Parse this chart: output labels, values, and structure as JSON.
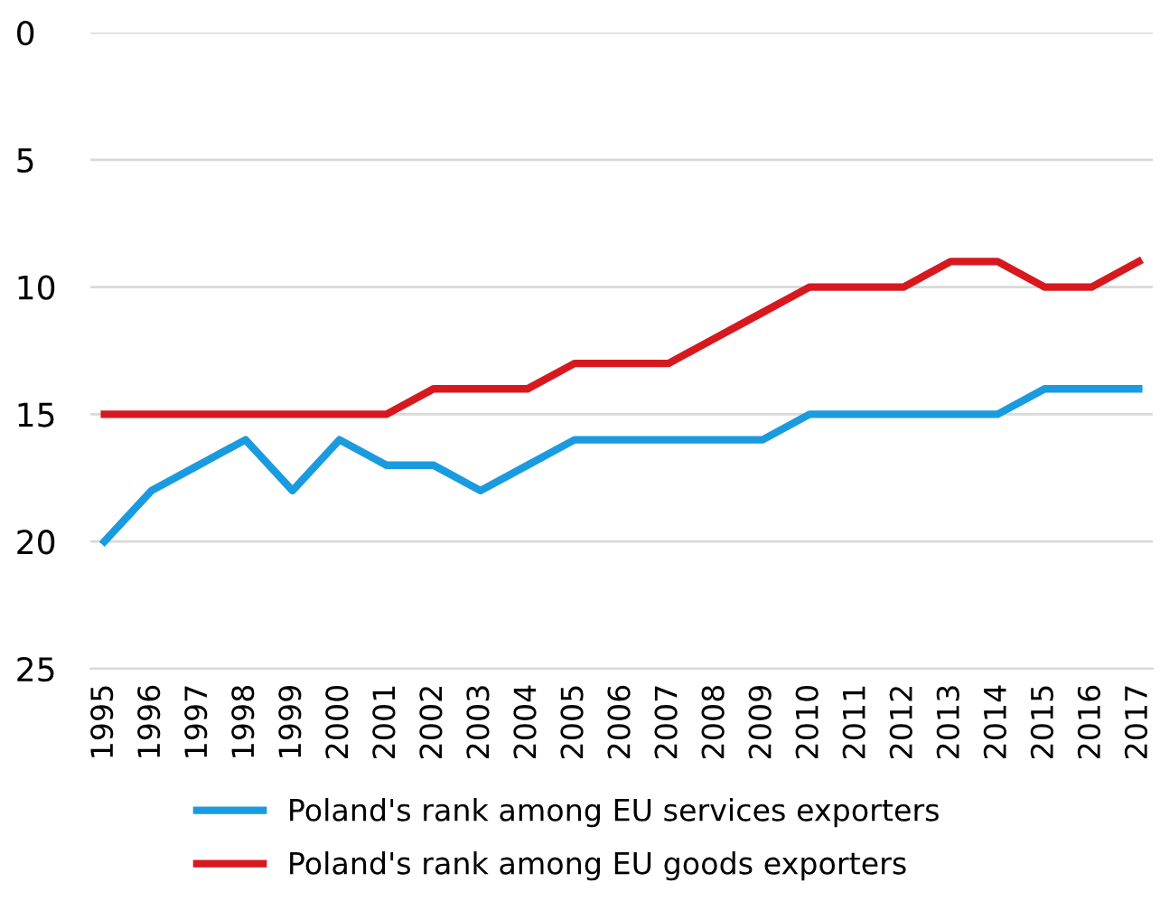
{
  "chart_data": {
    "type": "line",
    "categories": [
      "1995",
      "1996",
      "1997",
      "1998",
      "1999",
      "2000",
      "2001",
      "2002",
      "2003",
      "2004",
      "2005",
      "2006",
      "2007",
      "2008",
      "2009",
      "2010",
      "2011",
      "2012",
      "2013",
      "2014",
      "2015",
      "2016",
      "2017"
    ],
    "series": [
      {
        "name": "Poland's rank among EU services exporters",
        "color": "#1a9be0",
        "values": [
          20,
          18,
          17,
          16,
          18,
          16,
          17,
          17,
          18,
          17,
          16,
          16,
          16,
          16,
          16,
          15,
          15,
          15,
          15,
          15,
          14,
          14,
          14
        ]
      },
      {
        "name": "Poland's rank among EU goods exporters",
        "color": "#d7191f",
        "values": [
          15,
          15,
          15,
          15,
          15,
          15,
          15,
          14,
          14,
          14,
          13,
          13,
          13,
          12,
          11,
          10,
          10,
          10,
          9,
          9,
          10,
          10,
          9
        ]
      }
    ],
    "ylim": [
      25,
      0
    ],
    "yticks": [
      0,
      5,
      10,
      15,
      20,
      25
    ],
    "grid": "y",
    "legend": "bottom",
    "marker": "none",
    "line_style": "solid"
  }
}
